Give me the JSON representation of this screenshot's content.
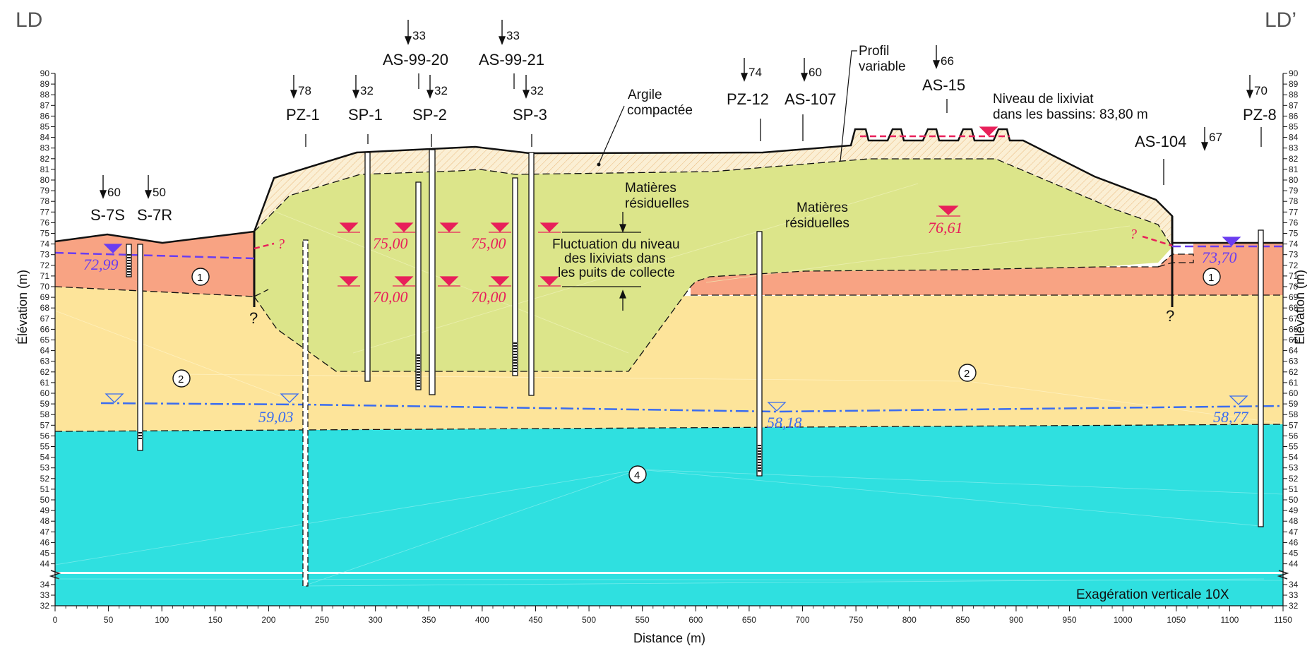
{
  "section": {
    "start_label": "LD",
    "end_label": "LD’"
  },
  "axes": {
    "y_label": "Élévation (m)",
    "y_label_right": "Élévation (m)",
    "x_label": "Distance (m)",
    "y_ticks_upper": [
      "90",
      "89",
      "88",
      "87",
      "86",
      "85",
      "84",
      "83",
      "82",
      "81",
      "80",
      "79",
      "78",
      "77",
      "76",
      "75",
      "74",
      "73",
      "72",
      "71",
      "70",
      "69",
      "68",
      "67",
      "66",
      "65",
      "64",
      "63",
      "62",
      "61",
      "60",
      "59",
      "58",
      "57",
      "56",
      "55",
      "54",
      "53",
      "52",
      "51",
      "50",
      "49",
      "48",
      "47",
      "46",
      "45",
      "44"
    ],
    "y_ticks_lower": [
      "34",
      "33",
      "32"
    ],
    "x_ticks": [
      "0",
      "50",
      "100",
      "150",
      "200",
      "250",
      "300",
      "350",
      "400",
      "450",
      "500",
      "550",
      "600",
      "650",
      "700",
      "750",
      "800",
      "850",
      "900",
      "950",
      "1000",
      "1050",
      "1100",
      "1150"
    ]
  },
  "wells": [
    {
      "id": "S-7S",
      "label": "S-7S",
      "azimuth": "60"
    },
    {
      "id": "S-7R",
      "label": "S-7R",
      "azimuth": "50"
    },
    {
      "id": "PZ-1",
      "label": "PZ-1",
      "azimuth": "78"
    },
    {
      "id": "SP-1",
      "label": "SP-1",
      "azimuth": "32"
    },
    {
      "id": "AS-99-20",
      "label": "AS-99-20",
      "azimuth": "33"
    },
    {
      "id": "SP-2",
      "label": "SP-2",
      "azimuth": "32"
    },
    {
      "id": "AS-99-21",
      "label": "AS-99-21",
      "azimuth": "33"
    },
    {
      "id": "SP-3",
      "label": "SP-3",
      "azimuth": "32"
    },
    {
      "id": "PZ-12",
      "label": "PZ-12",
      "azimuth": "74"
    },
    {
      "id": "AS-107",
      "label": "AS-107",
      "azimuth": "60"
    },
    {
      "id": "AS-15",
      "label": "AS-15",
      "azimuth": "66"
    },
    {
      "id": "AS-104",
      "label": "AS-104",
      "azimuth": "67"
    },
    {
      "id": "PZ-8",
      "label": "PZ-8",
      "azimuth": "70"
    }
  ],
  "annotations": {
    "argile": [
      "Argile",
      "compactée"
    ],
    "profil": [
      "Profil",
      "variable"
    ],
    "basins": [
      "Niveau de lixiviat",
      "dans les bassins: 83,80 m"
    ],
    "mat_left": [
      "Matières",
      "résiduelles"
    ],
    "mat_right": [
      "Matières",
      "résiduelles"
    ],
    "fluct": [
      "Fluctuation du niveau",
      "des lixiviats dans",
      "les puits de collecte"
    ],
    "exag": "Exagération verticale 10X",
    "question": "?"
  },
  "levels": {
    "l1": "72,99",
    "l2": "75,00",
    "l3": "70,00",
    "l4": "75,00",
    "l5": "70,00",
    "l6": "76,61",
    "l7": "73,70",
    "g1": "59,03",
    "g2": "58,18",
    "g3": "58,77"
  },
  "units": {
    "u1": "1",
    "u2": "2",
    "u4": "4"
  },
  "colors": {
    "clay_cap": "#fbefd4",
    "waste": "#dce58a",
    "unit1": "#f8a383",
    "unit2": "#fde49a",
    "unit4": "#2fe0e0",
    "leachate": "#e8205a",
    "perched_water": "#6a3df0",
    "groundwater": "#3a6cf0"
  }
}
